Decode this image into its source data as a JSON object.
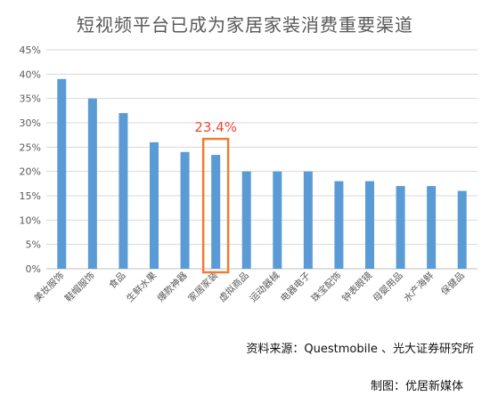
{
  "chart_data": {
    "type": "bar",
    "title": "短视频平台已成为家居家装消费重要渠道",
    "categories": [
      "美妆服饰",
      "鞋帽服饰",
      "食品",
      "生鲜水果",
      "爆款神器",
      "家居家装",
      "虚拟商品",
      "运动器械",
      "电器电子",
      "珠宝配饰",
      "钟表眼镜",
      "母婴用品",
      "水产海鲜",
      "保健品"
    ],
    "values": [
      39,
      35,
      32,
      26,
      24,
      23.4,
      20,
      20,
      20,
      18,
      18,
      17,
      17,
      16
    ],
    "y_ticks": [
      "0%",
      "5%",
      "10%",
      "15%",
      "20%",
      "25%",
      "30%",
      "35%",
      "40%",
      "45%"
    ],
    "ylim": [
      0,
      45
    ],
    "xlabel": "",
    "ylabel": "",
    "grid": true,
    "bar_color": "#5b9bd5",
    "highlight": {
      "category": "家居家装",
      "label": "23.4%",
      "box_color": "#ed7d31",
      "label_color": "#e84a3a"
    }
  },
  "source_note": "资料来源：Questmobile 、光大证券研究所",
  "credit_note": "制图：优居新媒体"
}
